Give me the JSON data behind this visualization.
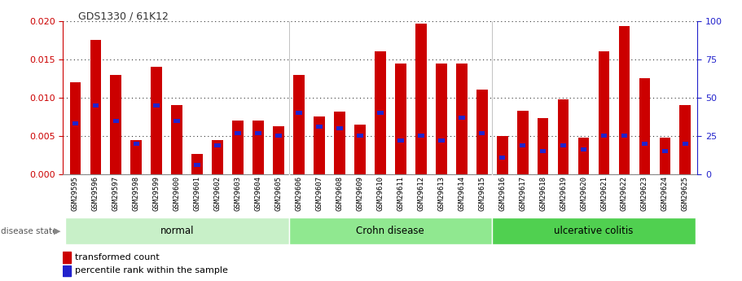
{
  "title": "GDS1330 / 61K12",
  "samples": [
    "GSM29595",
    "GSM29596",
    "GSM29597",
    "GSM29598",
    "GSM29599",
    "GSM29600",
    "GSM29601",
    "GSM29602",
    "GSM29603",
    "GSM29604",
    "GSM29605",
    "GSM29606",
    "GSM29607",
    "GSM29608",
    "GSM29609",
    "GSM29610",
    "GSM29611",
    "GSM29612",
    "GSM29613",
    "GSM29614",
    "GSM29615",
    "GSM29616",
    "GSM29617",
    "GSM29618",
    "GSM29619",
    "GSM29620",
    "GSM29621",
    "GSM29622",
    "GSM29623",
    "GSM29624",
    "GSM29625"
  ],
  "red_values": [
    0.012,
    0.0175,
    0.013,
    0.0045,
    0.014,
    0.009,
    0.0027,
    0.0045,
    0.007,
    0.007,
    0.0063,
    0.013,
    0.0075,
    0.0082,
    0.0065,
    0.016,
    0.0145,
    0.0197,
    0.0145,
    0.0145,
    0.011,
    0.005,
    0.0083,
    0.0073,
    0.0098,
    0.0048,
    0.016,
    0.0193,
    0.0125,
    0.0048,
    0.009
  ],
  "blue_percentile": [
    33,
    45,
    35,
    20,
    45,
    35,
    6,
    19,
    27,
    27,
    25,
    40,
    31,
    30,
    25,
    40,
    22,
    25,
    22,
    37,
    27,
    11,
    19,
    15,
    19,
    16,
    25,
    25,
    20,
    15,
    20
  ],
  "groups": [
    {
      "label": "normal",
      "start": 0,
      "end": 11,
      "color": "#c8f0c8"
    },
    {
      "label": "Crohn disease",
      "start": 11,
      "end": 21,
      "color": "#90e890"
    },
    {
      "label": "ulcerative colitis",
      "start": 21,
      "end": 31,
      "color": "#50d050"
    }
  ],
  "ylim_left": [
    0,
    0.02
  ],
  "ylim_right": [
    0,
    100
  ],
  "yticks_left": [
    0,
    0.005,
    0.01,
    0.015,
    0.02
  ],
  "yticks_right": [
    0,
    25,
    50,
    75,
    100
  ],
  "bar_color_red": "#cc0000",
  "bar_color_blue": "#2222cc",
  "bg_color": "#ffffff",
  "left_axis_color": "#cc0000",
  "right_axis_color": "#2222cc",
  "grid_color": "#333333",
  "title_color": "#333333",
  "sample_bg": "#cccccc",
  "bar_width": 0.55
}
